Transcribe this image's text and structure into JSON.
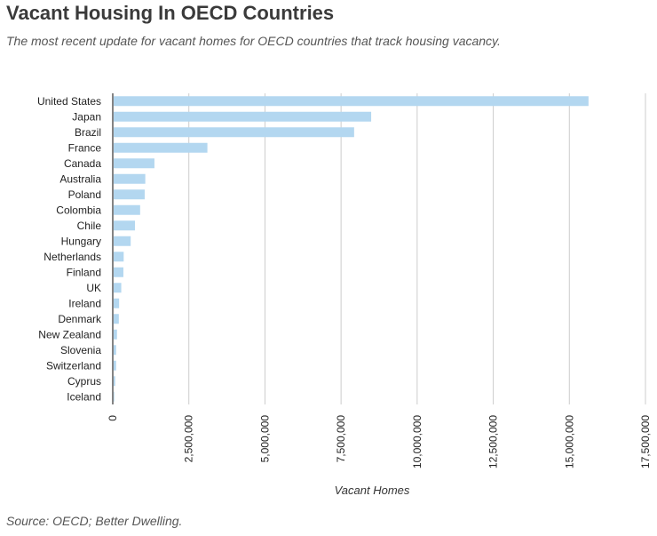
{
  "title": "Vacant Housing In OECD Countries",
  "subtitle": "The most recent update for vacant homes for OECD countries that track housing vacancy.",
  "source": "Source: OECD; Better Dwelling.",
  "colors": {
    "bar": "#b3d7f0",
    "grid": "#cccccc",
    "axis": "#333333"
  },
  "chart_data": {
    "type": "bar",
    "orientation": "horizontal",
    "title": "Vacant Housing In OECD Countries",
    "subtitle": "The most recent update for vacant homes for OECD countries that track housing vacancy.",
    "xlabel": "Vacant Homes",
    "ylabel": "",
    "xlim": [
      0,
      17500000
    ],
    "grid": true,
    "legend": "none",
    "categories": [
      "United States",
      "Japan",
      "Brazil",
      "France",
      "Canada",
      "Australia",
      "Poland",
      "Colombia",
      "Chile",
      "Hungary",
      "Netherlands",
      "Finland",
      "UK",
      "Ireland",
      "Denmark",
      "New Zealand",
      "Slovenia",
      "Switzerland",
      "Cyprus",
      "Iceland"
    ],
    "values": [
      15600000,
      8460000,
      7900000,
      3080000,
      1340000,
      1040000,
      1020000,
      870000,
      700000,
      560000,
      330000,
      320000,
      250000,
      180000,
      170000,
      110000,
      80000,
      80000,
      50000,
      20000
    ],
    "ticks": [
      0,
      2500000,
      5000000,
      7500000,
      10000000,
      12500000,
      15000000,
      17500000
    ],
    "tick_labels": [
      "0",
      "2,500,000",
      "5,000,000",
      "7,500,000",
      "10,000,000",
      "12,500,000",
      "15,000,000",
      "17,500,000"
    ]
  }
}
